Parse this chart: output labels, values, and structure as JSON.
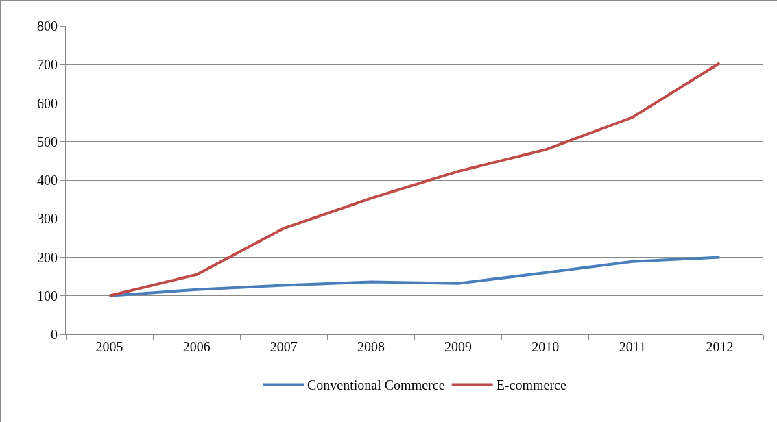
{
  "chart_data": {
    "type": "line",
    "categories": [
      "2005",
      "2006",
      "2007",
      "2008",
      "2009",
      "2010",
      "2011",
      "2012"
    ],
    "series": [
      {
        "name": "Conventional Commerce",
        "color": "#4a7ebb",
        "values": [
          100,
          116,
          127,
          136,
          132,
          160,
          189,
          200
        ]
      },
      {
        "name": "E-commerce",
        "color": "#be4b48",
        "values": [
          100,
          155,
          275,
          353,
          423,
          479,
          563,
          704
        ]
      }
    ],
    "ylim": [
      0,
      800
    ],
    "yticks": [
      0,
      100,
      200,
      300,
      400,
      500,
      600,
      700,
      800
    ],
    "grid": "y",
    "legend": "bottom",
    "marker": "none",
    "line_style": "solid"
  }
}
